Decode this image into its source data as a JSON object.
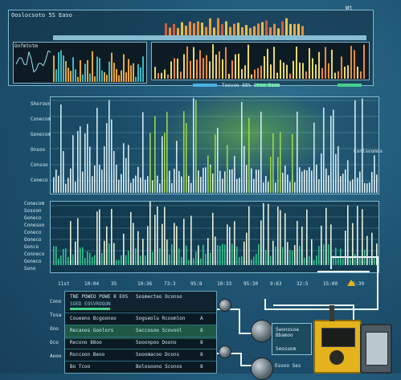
{
  "header": {
    "title": "Ooslocsoto 5S Easo",
    "right_label": "Wt"
  },
  "top_chart": {
    "label_tl": "Onfmtotm"
  },
  "mid_chart": {
    "status_text": "Toovoo  88%  Stoo  Ssoo",
    "y_labels": [
      "Shoroon",
      "Conecom",
      "Gonecom",
      "Onsoo",
      "Consoo",
      "Coneco"
    ],
    "right_tag": "Conlsoomos"
  },
  "low_chart": {
    "y_labels": [
      "Conecom",
      "Sosoon",
      "Goneco",
      "Conesoo",
      "Coneco",
      "Ooneco",
      "Gonco",
      "Conneco",
      "Goneco",
      "Sono"
    ],
    "x_labels": [
      "11st",
      "10:04",
      "35",
      "10:36",
      "73:3",
      "95:8",
      "10:33",
      "95:30",
      "9:63",
      "32:5",
      "15:00",
      "45:39"
    ]
  },
  "table": {
    "header_left": "TNE POWEO POWE 8 E0S",
    "header_left_sub": "SOED EOSVROQON",
    "header_mid": "Sosmecteo Oconso",
    "rows": [
      {
        "c1": "Coueeno   Bcgoonoo",
        "c2": "Sogseolu  Rcoomlon",
        "c3": "A"
      },
      {
        "c1": "Recanos   Goolors",
        "c2": "Saccosoo  Scovonl",
        "c3": "8"
      },
      {
        "c1": "Recono    88oo",
        "c2": "Sooonpoo  Doono",
        "c3": "8"
      },
      {
        "c1": "Roccoon   Beoo",
        "c2": "Sooomacoo Dcons",
        "c3": "8"
      },
      {
        "c1": "Bo        Tcoo",
        "c2": "Bolosoono Sconos",
        "c3": "8"
      }
    ],
    "side_labels": [
      "Cono",
      "Tosa",
      "Ono",
      "Oco",
      "Aooo"
    ]
  },
  "devices": {
    "switch_label": "Swonosoa\nBbamoo",
    "switch_sub": "Seosoom",
    "bottom_label": "Esooo  Ses"
  },
  "colors": {
    "accent_green": "#46d18a",
    "accent_blue": "#4cb2e6",
    "bar_yellow": "#e8d86a",
    "device_yellow": "#e3b21c"
  }
}
